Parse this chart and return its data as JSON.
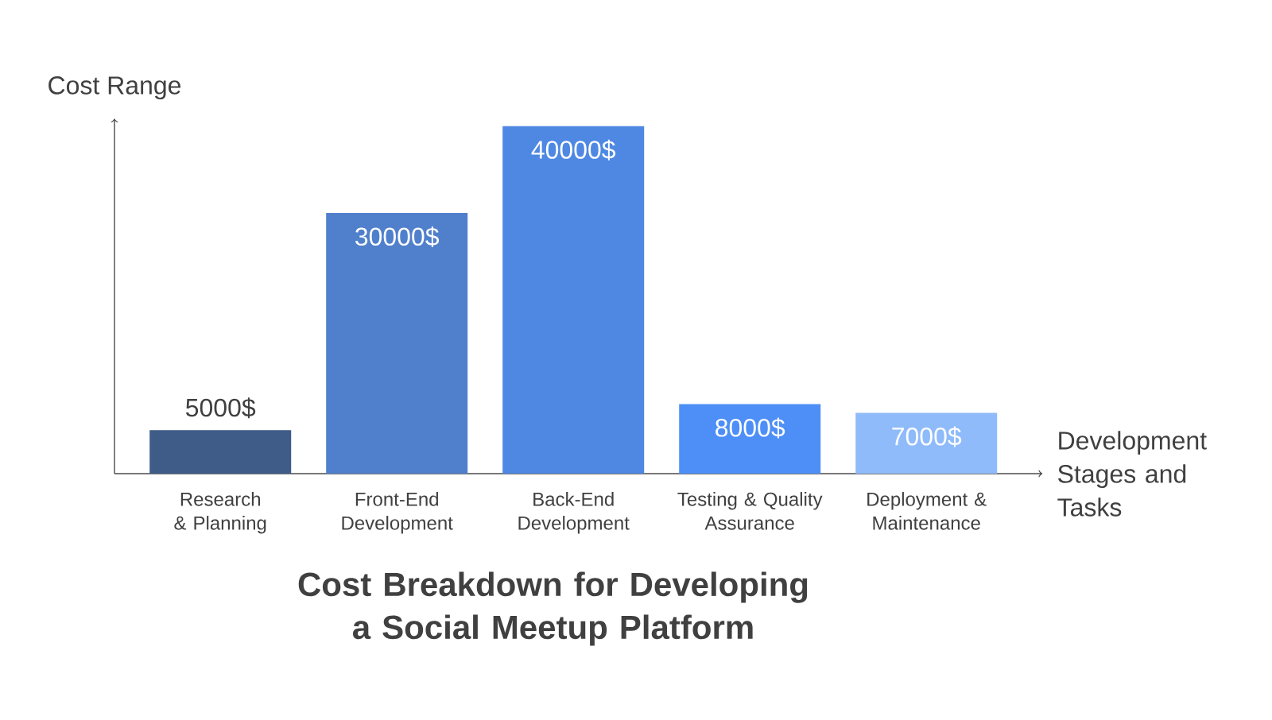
{
  "chart_data": {
    "type": "bar",
    "title": "Cost Breakdown for Developing a Social Meetup Platform",
    "xlabel": "Development Stages and Tasks",
    "ylabel": "Cost Range",
    "categories": [
      "Research & Planning",
      "Front-End Development",
      "Back-End Development",
      "Testing & Quality Assurance",
      "Deployment & Maintenance"
    ],
    "values": [
      5000,
      30000,
      40000,
      8000,
      7000
    ],
    "value_labels": [
      "5000$",
      "30000$",
      "40000$",
      "8000$",
      "7000$"
    ],
    "colors": [
      "#3f5b87",
      "#5080cc",
      "#4f88e3",
      "#4d8ff7",
      "#8fbbfa"
    ],
    "tick_labels": "x"
  }
}
